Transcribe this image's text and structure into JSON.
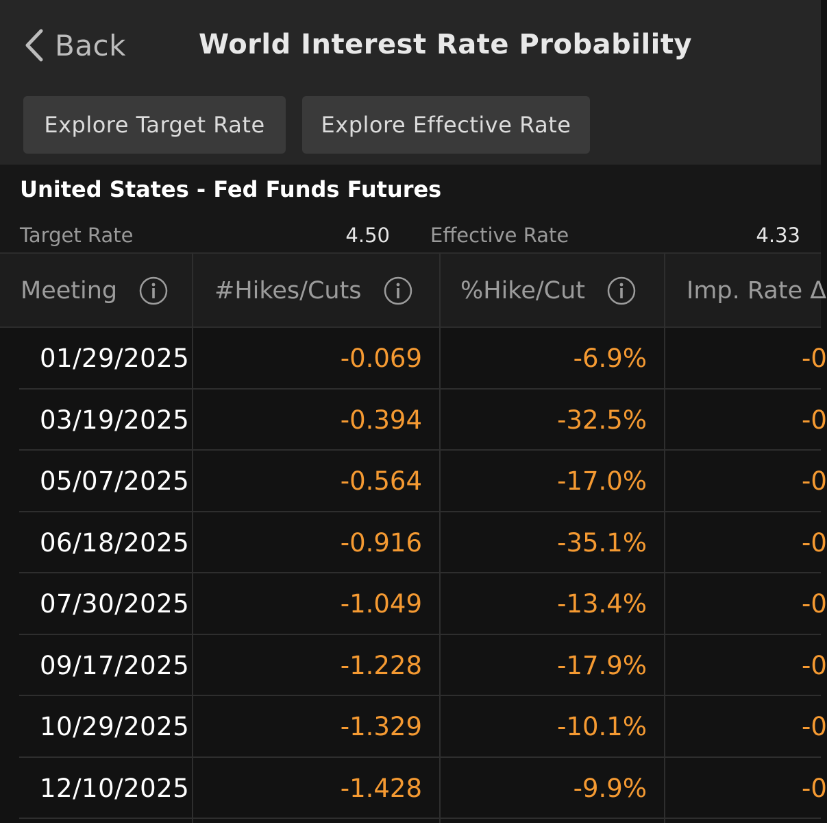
{
  "nav": {
    "back_label": "Back",
    "title": "World Interest Rate Probability"
  },
  "buttons": {
    "explore_target": "Explore Target Rate",
    "explore_effective": "Explore Effective Rate"
  },
  "market": {
    "title": "United States - Fed Funds Futures",
    "target_rate_label": "Target Rate",
    "target_rate_value": "4.50",
    "effective_rate_label": "Effective Rate",
    "effective_rate_value": "4.33"
  },
  "table": {
    "headers": {
      "meeting": "Meeting",
      "hikes_cuts": "#Hikes/Cuts",
      "pct_hike_cut": "%Hike/Cut",
      "imp_rate": "Imp. Rate Δ"
    },
    "rows": [
      {
        "meeting": "01/29/2025",
        "hikes_cuts": "-0.069",
        "pct_hike_cut": "-6.9%",
        "imp_rate": "-0"
      },
      {
        "meeting": "03/19/2025",
        "hikes_cuts": "-0.394",
        "pct_hike_cut": "-32.5%",
        "imp_rate": "-0"
      },
      {
        "meeting": "05/07/2025",
        "hikes_cuts": "-0.564",
        "pct_hike_cut": "-17.0%",
        "imp_rate": "-0"
      },
      {
        "meeting": "06/18/2025",
        "hikes_cuts": "-0.916",
        "pct_hike_cut": "-35.1%",
        "imp_rate": "-0"
      },
      {
        "meeting": "07/30/2025",
        "hikes_cuts": "-1.049",
        "pct_hike_cut": "-13.4%",
        "imp_rate": "-0"
      },
      {
        "meeting": "09/17/2025",
        "hikes_cuts": "-1.228",
        "pct_hike_cut": "-17.9%",
        "imp_rate": "-0"
      },
      {
        "meeting": "10/29/2025",
        "hikes_cuts": "-1.329",
        "pct_hike_cut": "-10.1%",
        "imp_rate": "-0"
      },
      {
        "meeting": "12/10/2025",
        "hikes_cuts": "-1.428",
        "pct_hike_cut": "-9.9%",
        "imp_rate": "-0"
      }
    ]
  },
  "icons": {
    "back": "chevron-left-icon",
    "info": "info-circle-icon"
  },
  "colors": {
    "negative_value": "#f59a32",
    "background": "#121212",
    "header_bar": "#262626"
  }
}
